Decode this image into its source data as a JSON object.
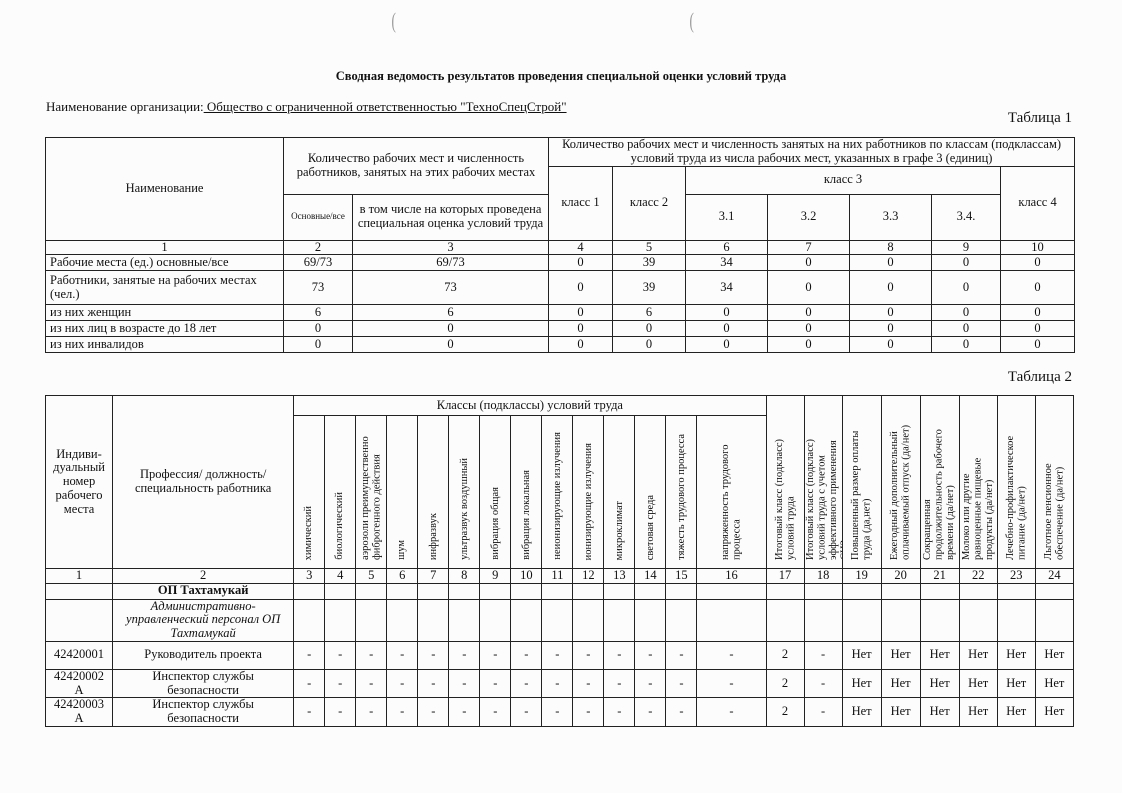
{
  "title": "Сводная ведомость результатов проведения специальной оценки условий труда",
  "org_label": "Наименование организации:",
  "org_name": " Общество с ограниченной ответственностью \"ТехноСпецСтрой\"",
  "table1": {
    "caption": "Таблица 1",
    "h_name": "Наименование",
    "h_group1": "Количество рабочих мест и численность работников, занятых на этих рабочих местах",
    "h_group2": "Количество рабочих мест и численность занятых на них работников по классам (подклассам) условий труда из числа рабочих мест, указанных в графе 3 (единиц)",
    "h_main": "Основные/все",
    "h_incl": "в том числе на которых проведена специальная оценка условий труда",
    "h_class1": "класс 1",
    "h_class2": "класс 2",
    "h_class3": "класс 3",
    "h_class4": "класс 4",
    "h_sub": [
      "3.1",
      "3.2",
      "3.3",
      "3.4."
    ],
    "col_numbers": [
      "1",
      "2",
      "3",
      "4",
      "5",
      "6",
      "7",
      "8",
      "9",
      "10"
    ],
    "rows": [
      [
        "Рабочие места (ед.) основные/все",
        "69/73",
        "69/73",
        "0",
        "39",
        "34",
        "0",
        "0",
        "0",
        "0"
      ],
      [
        "Работники, занятые на рабочих местах (чел.)",
        "73",
        "73",
        "0",
        "39",
        "34",
        "0",
        "0",
        "0",
        "0"
      ],
      [
        "из них женщин",
        "6",
        "6",
        "0",
        "6",
        "0",
        "0",
        "0",
        "0",
        "0"
      ],
      [
        "из них лиц в возрасте до 18 лет",
        "0",
        "0",
        "0",
        "0",
        "0",
        "0",
        "0",
        "0",
        "0"
      ],
      [
        "из них инвалидов",
        "0",
        "0",
        "0",
        "0",
        "0",
        "0",
        "0",
        "0",
        "0"
      ]
    ]
  },
  "table2": {
    "caption": "Таблица 2",
    "h_id": "Индиви-дуальный номер рабочего места",
    "h_prof": "Профессия/ должность/ специальность работника",
    "h_classes": "Классы (подклассы) условий труда",
    "factors": [
      "химический",
      "биологический",
      "аэрозоли преимущественно фиброгенного действия",
      "шум",
      "инфразвук",
      "ультразвук воздушный",
      "вибрация общая",
      "вибрация локальная",
      "неионизирующие излучения",
      "ионизирующие излучения",
      "микроклимат",
      "световая среда",
      "тяжесть трудового процесса",
      "напряженность трудового процесса"
    ],
    "extra": [
      "Итоговый класс (подкласс) условий труда",
      "Итоговый класс (подкласс) условий труда с учетом эффективного применения СИЗ",
      "Повышенный размер оплаты труда (да,нет)",
      "Ежегодный дополнительный оплачиваемый отпуск (да/нет)",
      "Сокращенная продолжительность рабочего времени (да/нет)",
      "Молоко или другие равноценные пищевые продукты (да/нет)",
      "Лечебно-профилактическое питание (да/нет)",
      "Льготное пенсионное обеспечение (да/нет)"
    ],
    "col_numbers": [
      "1",
      "2",
      "3",
      "4",
      "5",
      "6",
      "7",
      "8",
      "9",
      "10",
      "11",
      "12",
      "13",
      "14",
      "15",
      "16",
      "17",
      "18",
      "19",
      "20",
      "21",
      "22",
      "23",
      "24"
    ],
    "section": "ОП Тахтамукай",
    "subsection": "Административно-управленческий персонал ОП Тахтамукай",
    "rows": [
      [
        "42420001",
        "Руководитель проекта",
        "-",
        "-",
        "-",
        "-",
        "-",
        "-",
        "-",
        "-",
        "-",
        "-",
        "-",
        "-",
        "-",
        "-",
        "2",
        "-",
        "Нет",
        "Нет",
        "Нет",
        "Нет",
        "Нет",
        "Нет"
      ],
      [
        "42420002 А",
        "Инспектор службы безопасности",
        "-",
        "-",
        "-",
        "-",
        "-",
        "-",
        "-",
        "-",
        "-",
        "-",
        "-",
        "-",
        "-",
        "-",
        "2",
        "-",
        "Нет",
        "Нет",
        "Нет",
        "Нет",
        "Нет",
        "Нет"
      ],
      [
        "42420003 А",
        "Инспектор службы безопасности",
        "-",
        "-",
        "-",
        "-",
        "-",
        "-",
        "-",
        "-",
        "-",
        "-",
        "-",
        "-",
        "-",
        "-",
        "2",
        "-",
        "Нет",
        "Нет",
        "Нет",
        "Нет",
        "Нет",
        "Нет"
      ]
    ]
  }
}
